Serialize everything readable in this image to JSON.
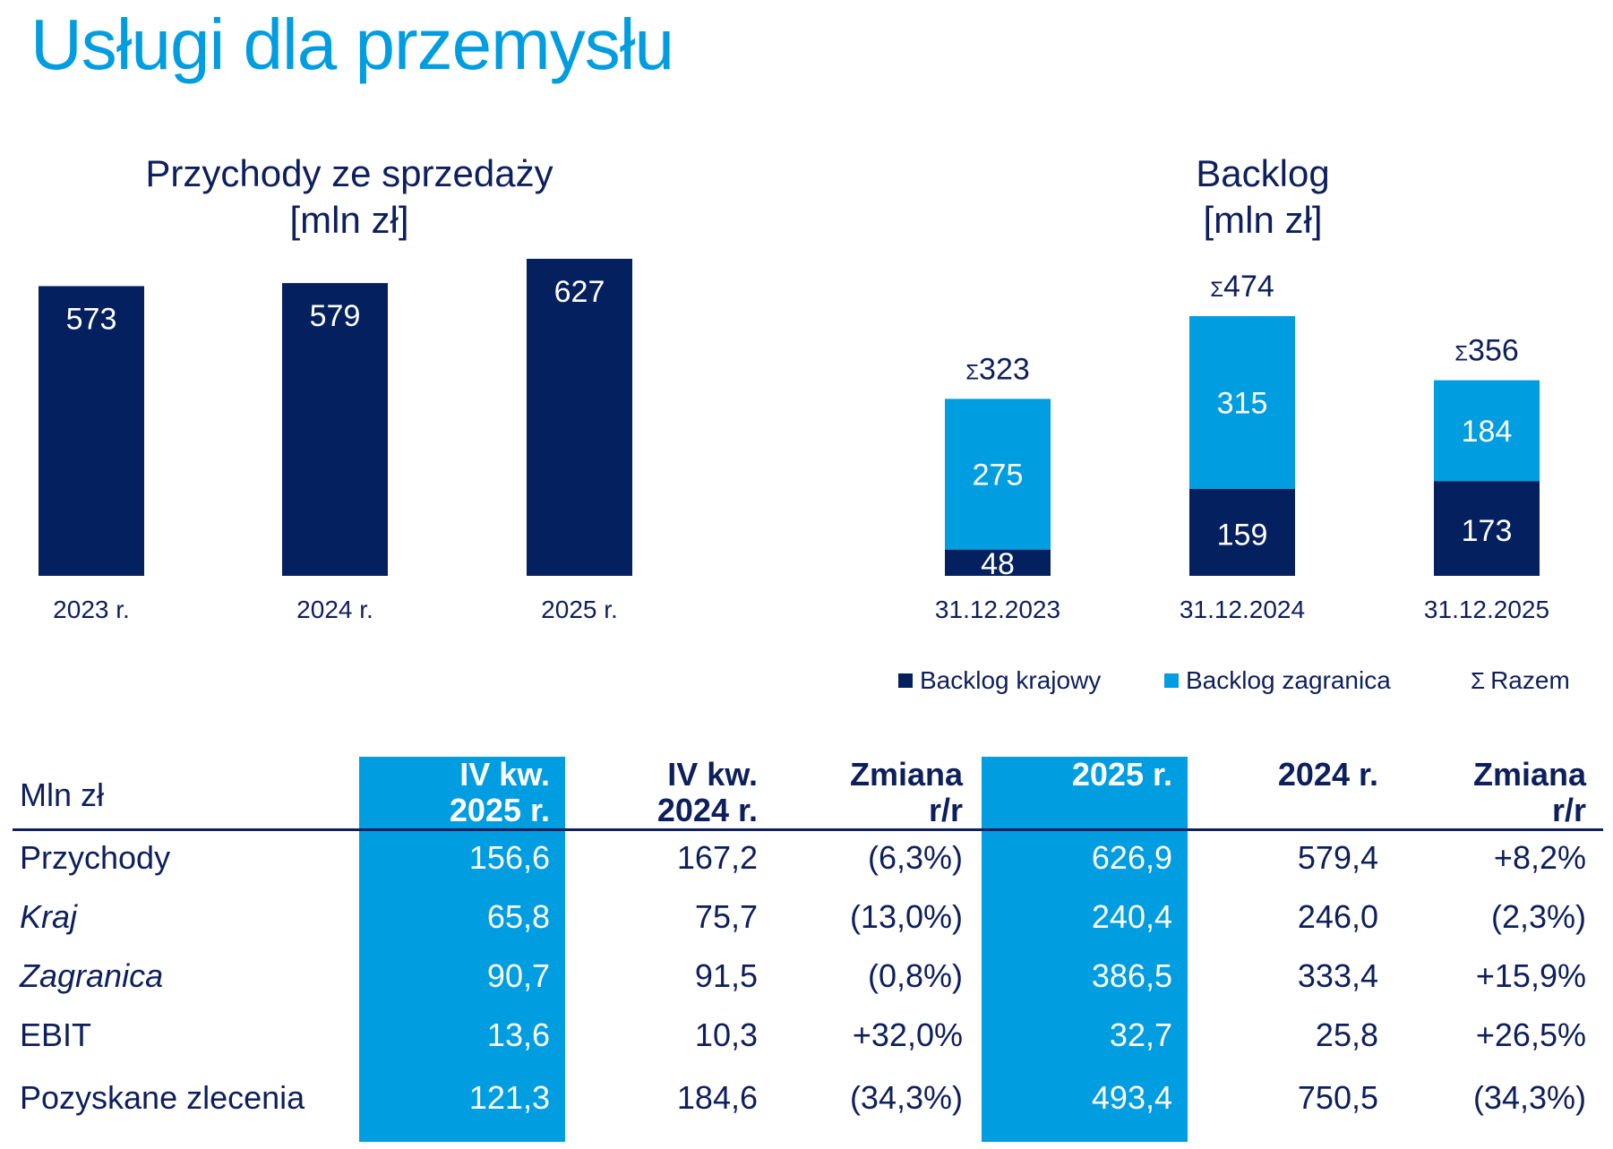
{
  "page_title": "Usługi dla przemysłu",
  "colors": {
    "accent": "#009de0",
    "navy": "#0d1f5c",
    "dark_bar": "#04205e"
  },
  "chart_data": [
    {
      "type": "bar",
      "title": "Przychody ze sprzedaży",
      "subtitle": "[mln zł]",
      "categories": [
        "2023 r.",
        "2024 r.",
        "2025 r."
      ],
      "values": [
        573,
        579,
        627
      ],
      "ylim": [
        0,
        627
      ]
    },
    {
      "type": "bar",
      "stacked": true,
      "title": "Backlog",
      "subtitle": "[mln zł]",
      "categories": [
        "31.12.2023",
        "31.12.2024",
        "31.12.2025"
      ],
      "series": [
        {
          "name": "Backlog krajowy",
          "values": [
            48,
            159,
            173
          ]
        },
        {
          "name": "Backlog zagranica",
          "values": [
            275,
            315,
            184
          ]
        }
      ],
      "totals": [
        323,
        474,
        356
      ],
      "total_symbol": "Σ",
      "legend": [
        "Backlog krajowy",
        "Backlog zagranica",
        "Razem"
      ],
      "legend_position": "bottom-right",
      "ylim": [
        0,
        474
      ]
    }
  ],
  "table": {
    "corner": "Mln zł",
    "headers": [
      [
        "IV kw.",
        "2025 r."
      ],
      [
        "IV kw.",
        "2024 r."
      ],
      [
        "Zmiana",
        "r/r"
      ],
      [
        "",
        "2025 r."
      ],
      [
        "",
        "2024 r."
      ],
      [
        "Zmiana",
        "r/r"
      ]
    ],
    "rows": [
      {
        "label": "Przychody",
        "italic": false,
        "values": [
          "156,6",
          "167,2",
          "(6,3%)",
          "626,9",
          "579,4",
          "+8,2%"
        ]
      },
      {
        "label": "Kraj",
        "italic": true,
        "values": [
          "65,8",
          "75,7",
          "(13,0%)",
          "240,4",
          "246,0",
          "(2,3%)"
        ]
      },
      {
        "label": "Zagranica",
        "italic": true,
        "values": [
          "90,7",
          "91,5",
          "(0,8%)",
          "386,5",
          "333,4",
          "+15,9%"
        ]
      },
      {
        "label": "EBIT",
        "italic": false,
        "values": [
          "13,6",
          "10,3",
          "+32,0%",
          "32,7",
          "25,8",
          "+26,5%"
        ]
      },
      {
        "label": "Pozyskane zlecenia",
        "italic": false,
        "values": [
          "121,3",
          "184,6",
          "(34,3%)",
          "493,4",
          "750,5",
          "(34,3%)"
        ]
      }
    ]
  }
}
